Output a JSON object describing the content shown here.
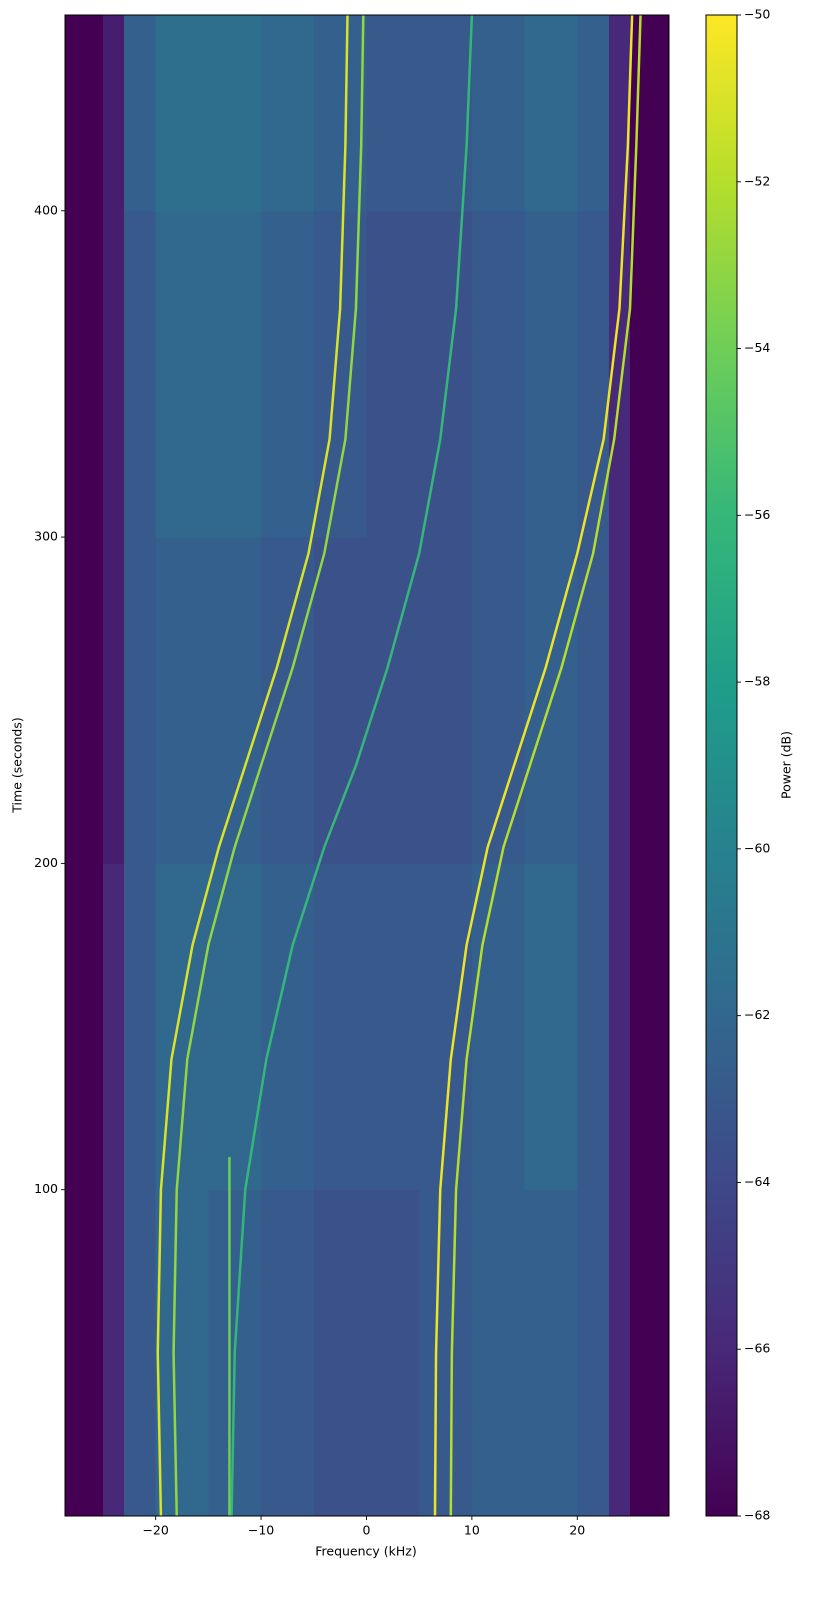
{
  "chart_data": {
    "type": "heatmap",
    "x_label": "Frequency (kHz)",
    "y_label": "Time (seconds)",
    "colorbar_label": "Power (dB)",
    "xlim": [
      -28.6,
      28.7
    ],
    "ylim": [
      0,
      460
    ],
    "xticks": [
      {
        "value": -20,
        "label": "−20"
      },
      {
        "value": -10,
        "label": "−10"
      },
      0,
      10,
      20
    ],
    "yticks": [
      100,
      200,
      300,
      400
    ],
    "clim": [
      -68,
      -50
    ],
    "cticks": [
      {
        "value": -68,
        "label": "−68"
      },
      {
        "value": -66,
        "label": "−66"
      },
      {
        "value": -64,
        "label": "−64"
      },
      {
        "value": -62,
        "label": "−62"
      },
      {
        "value": -60,
        "label": "−60"
      },
      {
        "value": -58,
        "label": "−58"
      },
      {
        "value": -56,
        "label": "−56"
      },
      {
        "value": -54,
        "label": "−54"
      },
      {
        "value": -52,
        "label": "−52"
      },
      {
        "value": -50,
        "label": "−50"
      }
    ],
    "colormap": [
      "#440154",
      "#482878",
      "#3e4989",
      "#31688e",
      "#26828e",
      "#1f9e89",
      "#35b779",
      "#6ece58",
      "#b5de2b",
      "#fde725"
    ],
    "x_edges": [
      -28.6,
      -25,
      -23,
      -20,
      -15,
      -10,
      -5,
      0,
      5,
      10,
      15,
      20,
      23,
      25,
      28.7
    ],
    "y_edges": [
      0,
      100,
      200,
      300,
      400,
      460
    ],
    "z": [
      [
        -68,
        -66,
        -63,
        -62,
        -62.5,
        -63,
        -63.5,
        -63.5,
        -63,
        -62.5,
        -62.5,
        -63,
        -66,
        -68
      ],
      [
        -68,
        -66,
        -63,
        -62,
        -62,
        -62.5,
        -63,
        -63,
        -63,
        -62.5,
        -62,
        -63,
        -66,
        -68
      ],
      [
        -68,
        -66.5,
        -63,
        -62.5,
        -62.5,
        -63,
        -63.5,
        -63.5,
        -63.5,
        -63,
        -62.5,
        -63,
        -66,
        -68
      ],
      [
        -68,
        -66.5,
        -63,
        -62,
        -62,
        -62.5,
        -63,
        -63.5,
        -63.5,
        -63,
        -62.5,
        -63,
        -66,
        -68
      ],
      [
        -68,
        -66.5,
        -62.5,
        -61.5,
        -61.5,
        -62,
        -62.5,
        -63,
        -63,
        -62.5,
        -62,
        -62.5,
        -66,
        -68
      ]
    ],
    "traces": [
      {
        "x": [
          -19.5,
          -19.8,
          -19.5,
          -18.5,
          -16.5,
          -14,
          -11.5,
          -8.5,
          -5.5,
          -3.5,
          -2.5,
          -2,
          -1.8
        ],
        "y": [
          0,
          50,
          100,
          140,
          175,
          205,
          230,
          260,
          295,
          330,
          370,
          420,
          460
        ],
        "level": -51
      },
      {
        "x": [
          -18,
          -18.3,
          -18,
          -17,
          -15,
          -12.5,
          -10,
          -7,
          -4,
          -2,
          -1,
          -0.5,
          -0.3
        ],
        "y": [
          0,
          50,
          100,
          140,
          175,
          205,
          230,
          260,
          295,
          330,
          370,
          420,
          460
        ],
        "level": -53
      },
      {
        "x": [
          6.5,
          6.6,
          7,
          8,
          9.5,
          11.5,
          14,
          17,
          20,
          22.5,
          24,
          24.8,
          25.2
        ],
        "y": [
          0,
          50,
          100,
          140,
          175,
          205,
          230,
          260,
          295,
          330,
          370,
          420,
          460
        ],
        "level": -50.5
      },
      {
        "x": [
          8,
          8.1,
          8.5,
          9.5,
          11,
          13,
          15.5,
          18.5,
          21.5,
          23.5,
          25,
          25.6,
          26
        ],
        "y": [
          0,
          50,
          100,
          140,
          175,
          205,
          230,
          260,
          295,
          330,
          370,
          420,
          460
        ],
        "level": -52
      },
      {
        "x": [
          -12.8,
          -12.5,
          -11.5,
          -9.5,
          -7,
          -4,
          -1,
          2,
          5,
          7,
          8.5,
          9.5,
          10
        ],
        "y": [
          0,
          50,
          100,
          140,
          175,
          205,
          230,
          260,
          295,
          330,
          370,
          420,
          460
        ],
        "level": -56
      },
      {
        "x": [
          -13,
          -13
        ],
        "y": [
          0,
          110
        ],
        "level": -54
      }
    ]
  }
}
